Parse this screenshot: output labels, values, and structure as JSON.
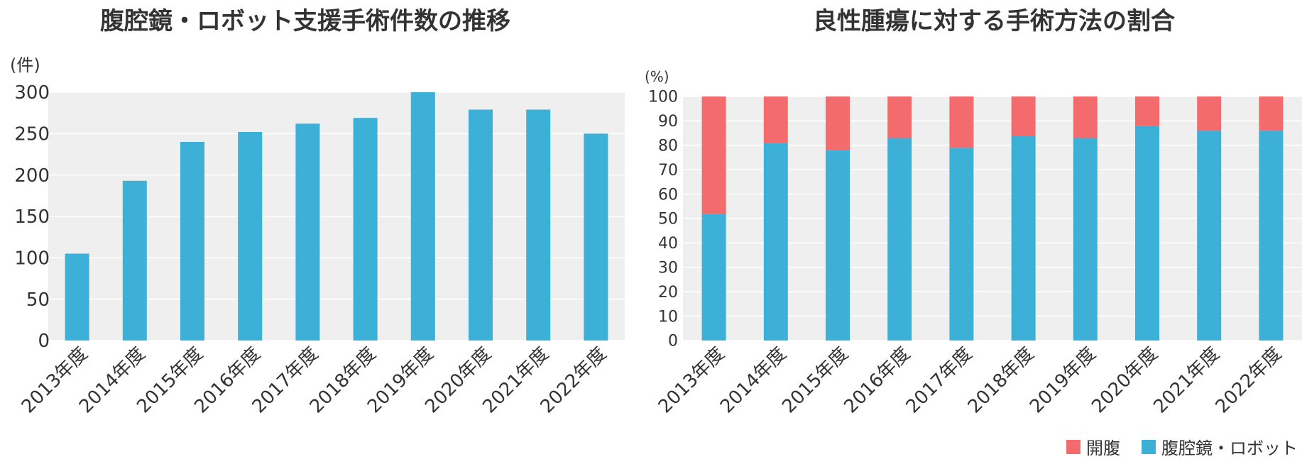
{
  "colors": {
    "blue": "#3db0d8",
    "red": "#f46b6e",
    "plot_bg": "#efefef",
    "grid": "#ffffff",
    "text": "#333333"
  },
  "chart_data": [
    {
      "type": "bar",
      "title": "腹腔鏡・ロボット支援手術件数の推移",
      "ylabel": "(件)",
      "categories": [
        "2013年度",
        "2014年度",
        "2015年度",
        "2016年度",
        "2017年度",
        "2018年度",
        "2019年度",
        "2020年度",
        "2021年度",
        "2022年度"
      ],
      "values": [
        105,
        193,
        240,
        252,
        262,
        269,
        300,
        279,
        279,
        250
      ],
      "ylim": [
        0,
        300
      ],
      "yticks": [
        "0",
        "50",
        "100",
        "150",
        "200",
        "250",
        "300"
      ],
      "grid": true
    },
    {
      "type": "bar",
      "stacked": true,
      "title": "良性腫瘍に対する手術方法の割合",
      "ylabel": "(%)",
      "categories": [
        "2013年度",
        "2014年度",
        "2015年度",
        "2016年度",
        "2017年度",
        "2018年度",
        "2019年度",
        "2020年度",
        "2021年度",
        "2022年度"
      ],
      "series": [
        {
          "name": "腹腔鏡・ロボット",
          "color": "#3db0d8",
          "values": [
            52,
            81,
            78,
            83,
            79,
            84,
            83,
            88,
            86,
            86
          ]
        },
        {
          "name": "開腹",
          "color": "#f46b6e",
          "values": [
            48,
            19,
            22,
            17,
            21,
            16,
            17,
            12,
            14,
            14
          ]
        }
      ],
      "ylim": [
        0,
        100
      ],
      "yticks": [
        "0",
        "10",
        "20",
        "30",
        "40",
        "50",
        "60",
        "70",
        "80",
        "90",
        "100"
      ],
      "grid": true,
      "legend": "bottom-right",
      "legend_order": [
        "開腹",
        "腹腔鏡・ロボット"
      ]
    }
  ]
}
